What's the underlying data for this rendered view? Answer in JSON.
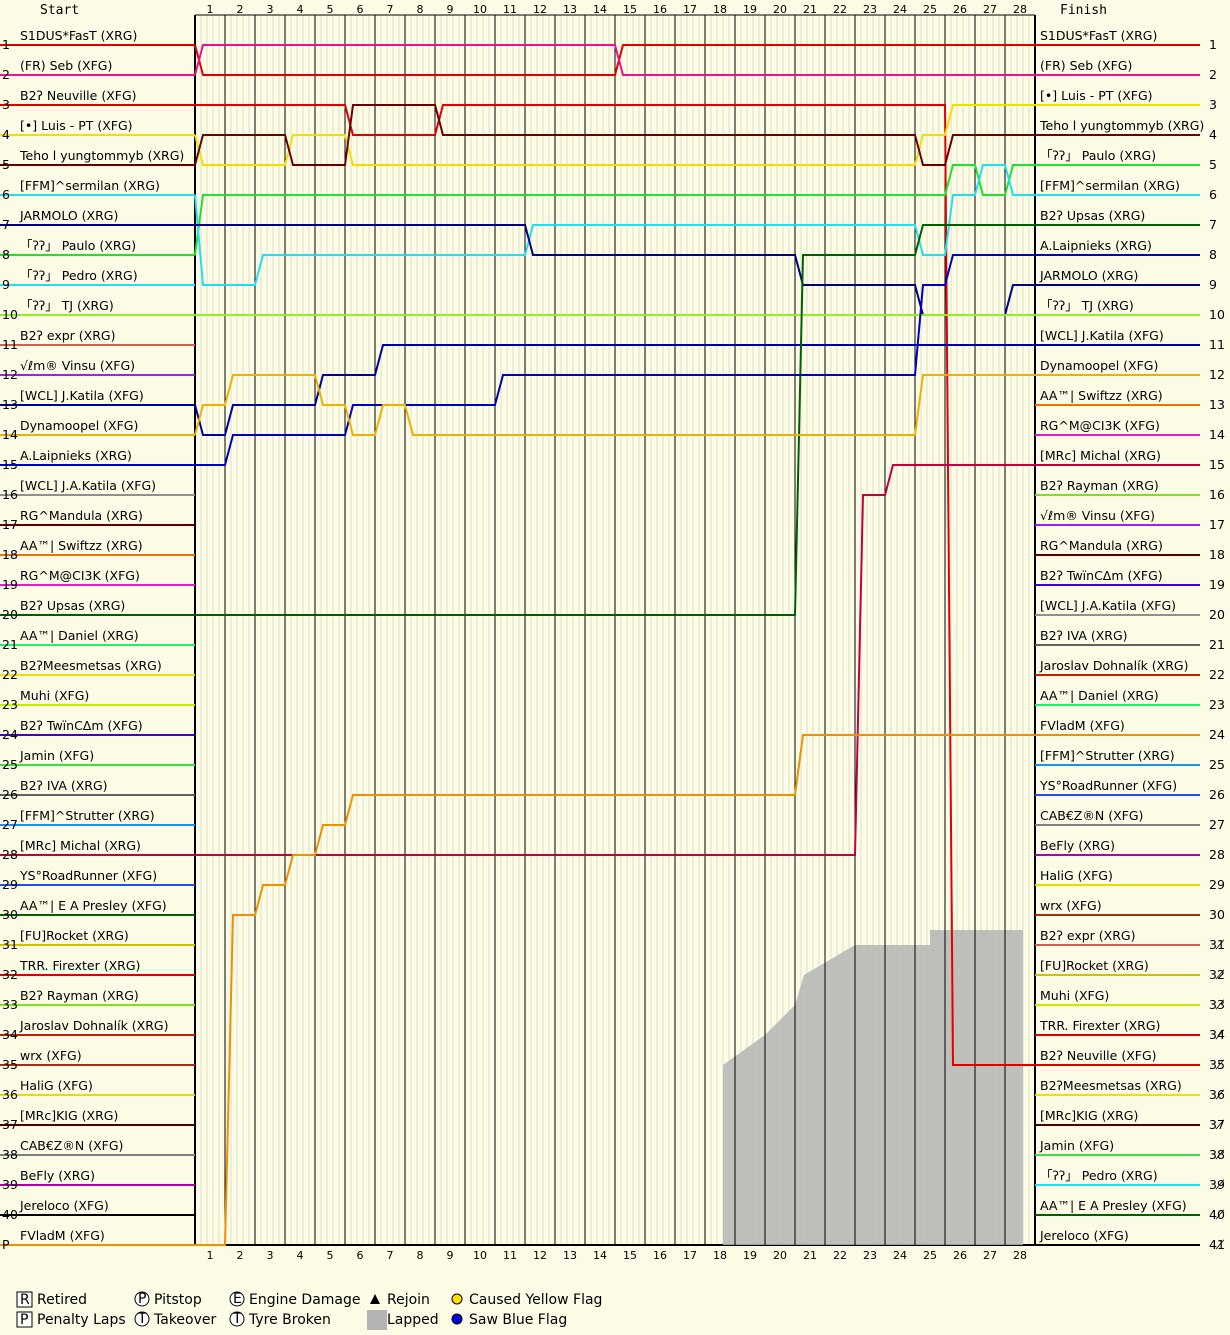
{
  "chart_data": {
    "type": "line",
    "start_header": "Start",
    "finish_header": "Finish",
    "laps": [
      "1",
      "2",
      "3",
      "4",
      "5",
      "6",
      "7",
      "8",
      "9",
      "10",
      "11",
      "12",
      "13",
      "14",
      "15",
      "16",
      "17",
      "18",
      "19",
      "20",
      "21",
      "22",
      "23",
      "24",
      "25",
      "26",
      "27",
      "28"
    ],
    "left_positions": [
      "1",
      "2",
      "3",
      "4",
      "5",
      "6",
      "7",
      "8",
      "9",
      "10",
      "11",
      "12",
      "13",
      "14",
      "15",
      "16",
      "17",
      "18",
      "19",
      "20",
      "21",
      "22",
      "23",
      "24",
      "25",
      "26",
      "27",
      "28",
      "29",
      "30",
      "31",
      "32",
      "33",
      "34",
      "35",
      "36",
      "37",
      "38",
      "39",
      "40",
      "P"
    ],
    "right_positions": [
      "1",
      "2",
      "3",
      "4",
      "5",
      "6",
      "7",
      "8",
      "9",
      "10",
      "11",
      "12",
      "13",
      "14",
      "15",
      "16",
      "17",
      "18",
      "19",
      "20",
      "21",
      "22",
      "23",
      "24",
      "25",
      "26",
      "27",
      "28",
      "29",
      "30",
      "31̸",
      "32̸",
      "33̸",
      "34̸",
      "35̸",
      "36̸",
      "37̸",
      "38̸",
      "39̸",
      "40̸",
      "41̸"
    ],
    "start_grid": [
      {
        "name": "S1DUS*FasT (XRG)",
        "color": "#e00000"
      },
      {
        "name": "(FR) Seb (XFG)",
        "color": "#ee1090"
      },
      {
        "name": "B2ʔ Neuville (XFG)",
        "color": "#e00000"
      },
      {
        "name": "[•] Luis - PT (XFG)",
        "color": "#f0e000"
      },
      {
        "name": "Teho l yungtommyb (XRG)",
        "color": "#6a0000"
      },
      {
        "name": "[FFM]^sermilan (XRG)",
        "color": "#20e0f0"
      },
      {
        "name": "JARMOLO (XRG)",
        "color": "#000080"
      },
      {
        "name": "「ʔʔ」 Paulo (XRG)",
        "color": "#20e030"
      },
      {
        "name": "「ʔʔ」 Pedro (XRG)",
        "color": "#20e0f0"
      },
      {
        "name": "「ʔʔ」  TJ (XRG)",
        "color": "#90f020"
      },
      {
        "name": "B2ʔ expr (XRG)",
        "color": "#d06050"
      },
      {
        "name": "√ℓm® Vinsu (XFG)",
        "color": "#a020f0"
      },
      {
        "name": "[WCL] J.Katila (XFG)",
        "color": "#0000a0"
      },
      {
        "name": "Dynamoopel (XFG)",
        "color": "#f0b000"
      },
      {
        "name": "A.Laipnieks (XRG)",
        "color": "#0000c0"
      },
      {
        "name": "[WCL] J.A.Katila (XFG)",
        "color": "#909090"
      },
      {
        "name": "RG^Mandula (XRG)",
        "color": "#600000"
      },
      {
        "name": "AA™| Swiftzz (XRG)",
        "color": "#f07000"
      },
      {
        "name": "RG^M@CI3K (XFG)",
        "color": "#e020d0"
      },
      {
        "name": "B2ʔ Upsas (XRG)",
        "color": "#006000"
      },
      {
        "name": "AA™| Daniel (XRG)",
        "color": "#20f070"
      },
      {
        "name": "B2ʔMeesmetsas (XRG)",
        "color": "#f0e000"
      },
      {
        "name": "Muhi (XFG)",
        "color": "#c0f000"
      },
      {
        "name": "B2ʔ TwïnCΔm (XFG)",
        "color": "#4000d0"
      },
      {
        "name": "Jamin (XFG)",
        "color": "#40e040"
      },
      {
        "name": "B2ʔ IVA (XRG)",
        "color": "#606060"
      },
      {
        "name": "[FFM]^Strutter (XRG)",
        "color": "#2090f0"
      },
      {
        "name": "[MRc] Michal (XRG)",
        "color": "#c00040"
      },
      {
        "name": "YS°RoadRunner (XFG)",
        "color": "#2050f0"
      },
      {
        "name": "AA™| E A Presley (XFG)",
        "color": "#006000"
      },
      {
        "name": "[FU]Rocket (XRG)",
        "color": "#d0c000"
      },
      {
        "name": "TRR. Firexter (XRG)",
        "color": "#e00000"
      },
      {
        "name": "B2ʔ Rayman (XRG)",
        "color": "#80e020"
      },
      {
        "name": "Jaroslav Dohnalík (XRG)",
        "color": "#c02000"
      },
      {
        "name": "wrx (XFG)",
        "color": "#a03010"
      },
      {
        "name": "HaliG (XFG)",
        "color": "#e0e000"
      },
      {
        "name": "[MRc]KIG (XRG)",
        "color": "#500000"
      },
      {
        "name": "CAB€Z®N (XFG)",
        "color": "#808080"
      },
      {
        "name": "BeFly (XRG)",
        "color": "#b000b0"
      },
      {
        "name": "Jereloco (XFG)",
        "color": "#000000"
      },
      {
        "name": "FVladM (XFG)",
        "color": "#f09000"
      }
    ],
    "finish_order": [
      "S1DUS*FasT (XRG)",
      "(FR) Seb (XFG)",
      "[•] Luis - PT (XFG)",
      "Teho l yungtommyb (XRG)",
      "「ʔʔ」 Paulo (XRG)",
      "[FFM]^sermilan (XRG)",
      "B2ʔ Upsas (XRG)",
      "A.Laipnieks (XRG)",
      "JARMOLO (XRG)",
      "「ʔʔ」  TJ (XRG)",
      "[WCL] J.Katila (XFG)",
      "Dynamoopel (XFG)",
      "AA™| Swiftzz (XRG)",
      "RG^M@CI3K (XFG)",
      "[MRc] Michal (XRG)",
      "B2ʔ Rayman (XRG)",
      "√ℓm® Vinsu (XFG)",
      "RG^Mandula (XRG)",
      "B2ʔ TwïnCΔm (XFG)",
      "[WCL] J.A.Katila (XFG)",
      "B2ʔ IVA (XRG)",
      "Jaroslav Dohnalík (XRG)",
      "AA™| Daniel (XRG)",
      "FVladM (XFG)",
      "[FFM]^Strutter (XRG)",
      "YS°RoadRunner (XFG)",
      "CAB€Z®N (XFG)",
      "BeFly (XRG)",
      "HaliG (XFG)",
      "wrx (XFG)",
      "B2ʔ expr (XRG)",
      "[FU]Rocket (XRG)",
      "Muhi (XFG)",
      "TRR. Firexter (XRG)",
      "B2ʔ Neuville (XFG)",
      "B2ʔMeesmetsas (XRG)",
      "[MRc]KIG (XRG)",
      "Jamin (XFG)",
      "「ʔʔ」 Pedro (XRG)",
      "AA™| E A Presley (XFG)",
      "Jereloco (XFG)"
    ],
    "series": [
      {
        "driver": "S1DUS*FasT (XRG)",
        "positions": [
          2,
          2,
          2,
          2,
          2,
          2,
          2,
          2,
          2,
          2,
          2,
          2,
          2,
          2,
          1,
          1,
          1,
          1,
          1,
          1,
          1,
          1,
          1,
          1,
          1,
          1,
          1,
          1
        ]
      },
      {
        "driver": "(FR) Seb (XFG)",
        "positions": [
          1,
          1,
          1,
          1,
          1,
          1,
          1,
          1,
          1,
          1,
          1,
          1,
          1,
          1,
          2,
          2,
          2,
          2,
          2,
          2,
          2,
          2,
          2,
          2,
          2,
          2,
          2,
          2
        ]
      },
      {
        "driver": "B2ʔ Neuville (XFG)",
        "positions": [
          3,
          3,
          3,
          3,
          3,
          4,
          4,
          4,
          3,
          3,
          3,
          3,
          3,
          3,
          3,
          3,
          3,
          3,
          3,
          3,
          3,
          3,
          3,
          3,
          3,
          35,
          35,
          35
        ]
      },
      {
        "driver": "[•] Luis - PT (XFG)",
        "positions": [
          5,
          5,
          5,
          4,
          4,
          5,
          5,
          5,
          5,
          5,
          5,
          5,
          5,
          5,
          5,
          5,
          5,
          5,
          5,
          5,
          5,
          5,
          5,
          5,
          4,
          3,
          3,
          3
        ]
      },
      {
        "driver": "Teho l yungtommyb (XRG)",
        "positions": [
          4,
          4,
          4,
          5,
          5,
          3,
          3,
          3,
          4,
          4,
          4,
          4,
          4,
          4,
          4,
          4,
          4,
          4,
          4,
          4,
          4,
          4,
          4,
          4,
          5,
          4,
          4,
          4
        ]
      },
      {
        "driver": "「ʔʔ」 Paulo (XRG)",
        "positions": [
          6,
          6,
          6,
          6,
          6,
          6,
          6,
          6,
          6,
          6,
          6,
          6,
          6,
          6,
          6,
          6,
          6,
          6,
          6,
          6,
          6,
          6,
          6,
          6,
          6,
          5,
          6,
          5
        ]
      },
      {
        "driver": "[FFM]^sermilan (XRG)",
        "positions": [
          9,
          9,
          8,
          8,
          8,
          8,
          8,
          8,
          8,
          8,
          8,
          7,
          7,
          7,
          7,
          7,
          7,
          7,
          7,
          7,
          7,
          7,
          7,
          7,
          8,
          6,
          5,
          6
        ]
      },
      {
        "driver": "JARMOLO (XRG)",
        "positions": [
          7,
          7,
          7,
          7,
          7,
          7,
          7,
          7,
          7,
          7,
          7,
          8,
          8,
          8,
          8,
          8,
          8,
          8,
          8,
          8,
          9,
          9,
          9,
          9,
          10,
          10,
          10,
          9
        ]
      },
      {
        "driver": "「ʔʔ」  TJ (XRG)",
        "positions": [
          10,
          10,
          10,
          10,
          10,
          10,
          10,
          10,
          10,
          10,
          10,
          10,
          10,
          10,
          10,
          10,
          10,
          10,
          10,
          10,
          10,
          10,
          10,
          10,
          10,
          10,
          10,
          10
        ]
      },
      {
        "driver": "[WCL] J.Katila (XFG)",
        "positions": [
          14,
          13,
          13,
          13,
          12,
          12,
          11,
          11,
          11,
          11,
          11,
          11,
          11,
          11,
          11,
          11,
          11,
          11,
          11,
          11,
          11,
          11,
          11,
          11,
          11,
          11,
          11,
          11
        ]
      },
      {
        "driver": "B2ʔ Upsas (XRG)",
        "positions": [
          20,
          20,
          20,
          20,
          20,
          20,
          20,
          20,
          20,
          20,
          20,
          20,
          20,
          20,
          20,
          20,
          20,
          20,
          20,
          20,
          8,
          8,
          8,
          8,
          7,
          7,
          7,
          7
        ]
      },
      {
        "driver": "A.Laipnieks (XRG)",
        "positions": [
          15,
          14,
          14,
          14,
          14,
          13,
          13,
          13,
          13,
          13,
          12,
          12,
          12,
          12,
          12,
          12,
          12,
          12,
          12,
          12,
          12,
          12,
          12,
          12,
          9,
          8,
          8,
          8
        ]
      },
      {
        "driver": "Dynamoopel (XFG)",
        "positions": [
          13,
          12,
          12,
          12,
          13,
          14,
          13,
          14,
          14,
          14,
          14,
          14,
          14,
          14,
          14,
          14,
          14,
          14,
          14,
          14,
          14,
          14,
          14,
          14,
          12,
          12,
          12,
          12
        ]
      },
      {
        "driver": "[MRc] Michal (XRG)",
        "positions": [
          28,
          28,
          28,
          28,
          28,
          28,
          28,
          28,
          28,
          28,
          28,
          28,
          28,
          28,
          28,
          28,
          28,
          28,
          28,
          28,
          28,
          28,
          16,
          15,
          15,
          15,
          15,
          15
        ]
      },
      {
        "driver": "FVladM (XFG)",
        "positions": [
          41,
          30,
          29,
          28,
          27,
          26,
          26,
          26,
          26,
          26,
          26,
          26,
          26,
          26,
          26,
          26,
          26,
          26,
          26,
          26,
          24,
          24,
          24,
          24,
          24,
          24,
          24,
          24
        ]
      }
    ],
    "legend": [
      {
        "symbol": "R",
        "label": "Retired"
      },
      {
        "symbol": "P",
        "label": "Penalty Laps"
      },
      {
        "symbol": "P",
        "label": "Pitstop"
      },
      {
        "symbol": "T",
        "label": "Takeover"
      },
      {
        "symbol": "E",
        "label": "Engine Damage"
      },
      {
        "symbol": "T",
        "label": "Tyre Broken"
      },
      {
        "symbol": "▲",
        "label": "Rejoin"
      },
      {
        "symbol": "■",
        "label": "Lapped"
      },
      {
        "symbol": "●",
        "label": "Caused Yellow Flag"
      },
      {
        "symbol": "●",
        "label": "Saw Blue Flag"
      }
    ],
    "legend_colors": {
      "yellow_flag": "#ffe000",
      "blue_flag": "#0000e0",
      "lapped": "#b4b4b4"
    }
  }
}
